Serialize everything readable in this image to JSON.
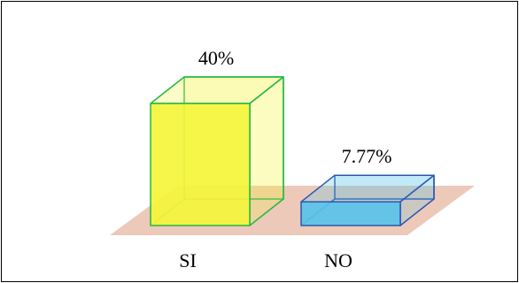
{
  "chart_data": {
    "type": "bar",
    "style": "3d-box",
    "categories": [
      "SI",
      "NO"
    ],
    "values": [
      40,
      7.77
    ],
    "value_labels": [
      "40%",
      "7.77%"
    ],
    "title": "",
    "xlabel": "",
    "ylabel": "",
    "ylim": [
      0,
      40
    ],
    "grid": false,
    "legend": "none",
    "colors": {
      "SI": {
        "fill": "#f4f53a",
        "edge": "#22b845"
      },
      "NO": {
        "fill": "#58c2ea",
        "edge": "#2a57b5"
      },
      "floor": "#ecc9b8"
    }
  }
}
